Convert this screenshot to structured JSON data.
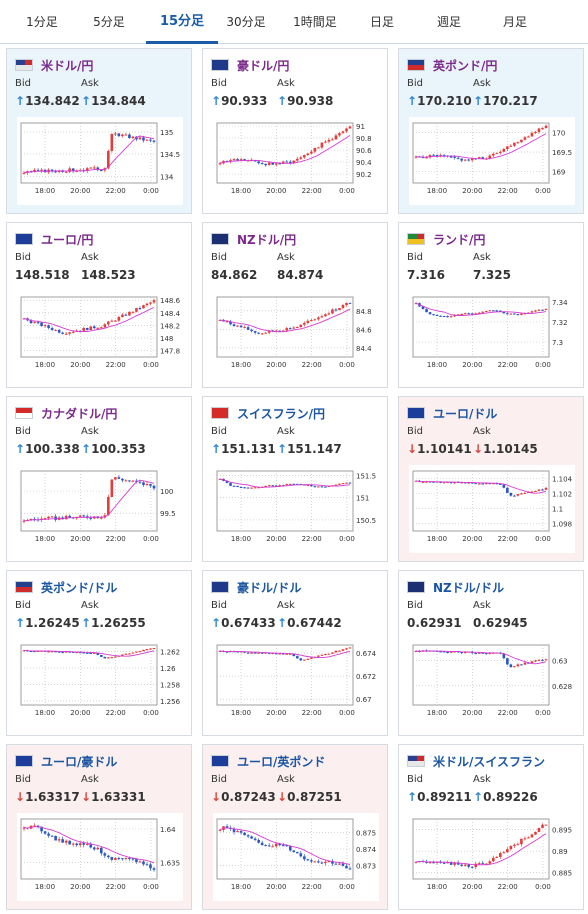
{
  "tabs": [
    {
      "label": "1分足",
      "active": false
    },
    {
      "label": "5分足",
      "active": false
    },
    {
      "label": "15分足",
      "active": true
    },
    {
      "label": "30分足",
      "active": false
    },
    {
      "label": "1時間足",
      "active": false
    },
    {
      "label": "日足",
      "active": false
    },
    {
      "label": "週足",
      "active": false
    },
    {
      "label": "月足",
      "active": false
    }
  ],
  "labels": {
    "bid": "Bid",
    "ask": "Ask"
  },
  "colors": {
    "candle_up": "#e83a3a",
    "candle_down": "#2a56c6",
    "moving_average": "#d63ad3",
    "pair_purple": "#7b2a8c",
    "pair_blue": "#1b56a4",
    "arrow_up": "#2f86d6",
    "arrow_down": "#d9453b"
  },
  "pairs": [
    {
      "name": "米ドル/円",
      "flag": "us",
      "trend": "up",
      "bid": "134.842",
      "ask": "134.844",
      "card": "up",
      "chart_data": {
        "type": "candlestick",
        "x_ticks": [
          "18:00",
          "20:00",
          "22:00",
          "0:00"
        ],
        "y_ticks": [
          "135",
          "134.5",
          "134"
        ],
        "ylim": [
          133.85,
          135.2
        ],
        "start": 134.05,
        "end": 134.84,
        "high_point": 135.05,
        "shape": "jump_late"
      }
    },
    {
      "name": "豪ドル/円",
      "flag": "au",
      "trend": "up",
      "bid": "90.933",
      "ask": "90.938",
      "card": "white",
      "chart_data": {
        "type": "candlestick",
        "x_ticks": [
          "18:00",
          "20:00",
          "22:00",
          "0:00"
        ],
        "y_ticks": [
          "91",
          "90.8",
          "90.6",
          "90.4",
          "90.2"
        ],
        "ylim": [
          90.05,
          91.05
        ],
        "start": 90.3,
        "end": 90.93,
        "high_point": 90.98,
        "shape": "rise_late"
      }
    },
    {
      "name": "英ポンド/円",
      "flag": "uk",
      "trend": "up",
      "bid": "170.210",
      "ask": "170.217",
      "card": "up",
      "chart_data": {
        "type": "candlestick",
        "x_ticks": [
          "18:00",
          "20:00",
          "22:00",
          "0:00"
        ],
        "y_ticks": [
          "170",
          "169.5",
          "169"
        ],
        "ylim": [
          168.7,
          170.25
        ],
        "start": 169.2,
        "end": 170.21,
        "high_point": 170.2,
        "shape": "rise_late"
      }
    },
    {
      "name": "ユーロ/円",
      "flag": "eu",
      "trend": "none",
      "bid": "148.518",
      "ask": "148.523",
      "card": "white",
      "chart_data": {
        "type": "candlestick",
        "x_ticks": [
          "18:00",
          "20:00",
          "22:00",
          "0:00"
        ],
        "y_ticks": [
          "148.6",
          "148.4",
          "148.2",
          "148",
          "147.8"
        ],
        "ylim": [
          147.7,
          148.65
        ],
        "start": 148.0,
        "end": 148.52,
        "high_point": 148.6,
        "shape": "dip_rise"
      }
    },
    {
      "name": "NZドル/円",
      "flag": "nz",
      "trend": "none",
      "bid": "84.862",
      "ask": "84.874",
      "card": "white",
      "chart_data": {
        "type": "candlestick",
        "x_ticks": [
          "18:00",
          "20:00",
          "22:00",
          "0:00"
        ],
        "y_ticks": [
          "84.8",
          "84.6",
          "84.4"
        ],
        "ylim": [
          84.3,
          84.95
        ],
        "start": 84.5,
        "end": 84.86,
        "high_point": 84.9,
        "shape": "dip_rise"
      }
    },
    {
      "name": "ランド/円",
      "flag": "za",
      "trend": "none",
      "bid": "7.316",
      "ask": "7.325",
      "card": "white",
      "chart_data": {
        "type": "candlestick",
        "x_ticks": [
          "18:00",
          "20:00",
          "22:00",
          "0:00"
        ],
        "y_ticks": [
          "7.34",
          "7.32",
          "7.3"
        ],
        "ylim": [
          7.285,
          7.345
        ],
        "start": 7.335,
        "end": 7.32,
        "high_point": 7.34,
        "shape": "drop_recover"
      }
    },
    {
      "name": "カナダドル/円",
      "flag": "ca",
      "trend": "up",
      "bid": "100.338",
      "ask": "100.353",
      "card": "white",
      "chart_data": {
        "type": "candlestick",
        "x_ticks": [
          "18:00",
          "20:00",
          "22:00",
          "0:00"
        ],
        "y_ticks": [
          "100",
          "99.5"
        ],
        "ylim": [
          99.1,
          100.45
        ],
        "start": 99.3,
        "end": 100.34,
        "high_point": 100.4,
        "shape": "jump_late"
      }
    },
    {
      "name": "スイスフラン/円",
      "flag": "ch",
      "trend": "up",
      "bid": "151.131",
      "ask": "151.147",
      "card": "white",
      "chart_data": {
        "type": "candlestick",
        "x_ticks": [
          "18:00",
          "20:00",
          "22:00",
          "0:00"
        ],
        "y_ticks": [
          "151.5",
          "151",
          "150.5"
        ],
        "ylim": [
          150.25,
          151.6
        ],
        "start": 151.4,
        "end": 151.13,
        "high_point": 151.45,
        "shape": "drop_recover"
      }
    },
    {
      "name": "ユーロ/ドル",
      "flag": "eu",
      "trend": "down",
      "bid": "1.10141",
      "ask": "1.10145",
      "card": "down",
      "chart_data": {
        "type": "candlestick",
        "x_ticks": [
          "18:00",
          "20:00",
          "22:00",
          "0:00"
        ],
        "y_ticks": [
          "1.104",
          "1.102",
          "1.1",
          "1.098"
        ],
        "ylim": [
          1.097,
          1.105
        ],
        "start": 1.1035,
        "end": 1.1014,
        "high_point": 1.104,
        "shape": "fall_late"
      }
    },
    {
      "name": "英ポンド/ドル",
      "flag": "uk",
      "trend": "up",
      "bid": "1.26245",
      "ask": "1.26255",
      "card": "white",
      "chart_data": {
        "type": "candlestick",
        "x_ticks": [
          "18:00",
          "20:00",
          "22:00",
          "0:00"
        ],
        "y_ticks": [
          "1.262",
          "1.26",
          "1.258",
          "1.256"
        ],
        "ylim": [
          1.2555,
          1.2628
        ],
        "start": 1.261,
        "end": 1.2624,
        "high_point": 1.2625,
        "shape": "v_shape"
      }
    },
    {
      "name": "豪ドル/ドル",
      "flag": "au",
      "trend": "up",
      "bid": "0.67433",
      "ask": "0.67442",
      "card": "white",
      "chart_data": {
        "type": "candlestick",
        "x_ticks": [
          "18:00",
          "20:00",
          "22:00",
          "0:00"
        ],
        "y_ticks": [
          "0.674",
          "0.672",
          "0.67"
        ],
        "ylim": [
          0.6695,
          0.6747
        ],
        "start": 0.6732,
        "end": 0.6743,
        "high_point": 0.6745,
        "shape": "v_shape"
      }
    },
    {
      "name": "NZドル/ドル",
      "flag": "nz",
      "trend": "none",
      "bid": "0.62931",
      "ask": "0.62945",
      "card": "white",
      "chart_data": {
        "type": "candlestick",
        "x_ticks": [
          "18:00",
          "20:00",
          "22:00",
          "0:00"
        ],
        "y_ticks": [
          "0.63",
          "0.628"
        ],
        "ylim": [
          0.6265,
          0.6312
        ],
        "start": 0.6305,
        "end": 0.6293,
        "high_point": 0.631,
        "shape": "fall_late"
      }
    },
    {
      "name": "ユーロ/豪ドル",
      "flag": "eu",
      "trend": "down",
      "bid": "1.63317",
      "ask": "1.63331",
      "card": "down",
      "chart_data": {
        "type": "candlestick",
        "x_ticks": [
          "18:00",
          "20:00",
          "22:00",
          "0:00"
        ],
        "y_ticks": [
          "1.64",
          "1.635"
        ],
        "ylim": [
          1.6325,
          1.6415
        ],
        "start": 1.6405,
        "end": 1.6332,
        "high_point": 1.641,
        "shape": "steady_down"
      }
    },
    {
      "name": "ユーロ/英ポンド",
      "flag": "eu",
      "trend": "down",
      "bid": "0.87243",
      "ask": "0.87251",
      "card": "down",
      "chart_data": {
        "type": "candlestick",
        "x_ticks": [
          "18:00",
          "20:00",
          "22:00",
          "0:00"
        ],
        "y_ticks": [
          "0.875",
          "0.874",
          "0.873"
        ],
        "ylim": [
          0.8722,
          0.8758
        ],
        "start": 0.8752,
        "end": 0.8724,
        "high_point": 0.8755,
        "shape": "steady_down"
      }
    },
    {
      "name": "米ドル/スイスフラン",
      "flag": "us",
      "trend": "up",
      "bid": "0.89211",
      "ask": "0.89226",
      "card": "white",
      "chart_data": {
        "type": "candlestick",
        "x_ticks": [
          "18:00",
          "20:00",
          "22:00",
          "0:00"
        ],
        "y_ticks": [
          "0.895",
          "0.89",
          "0.885"
        ],
        "ylim": [
          0.8835,
          0.8975
        ],
        "start": 0.8855,
        "end": 0.8921,
        "high_point": 0.8965,
        "shape": "rise_late"
      }
    }
  ]
}
